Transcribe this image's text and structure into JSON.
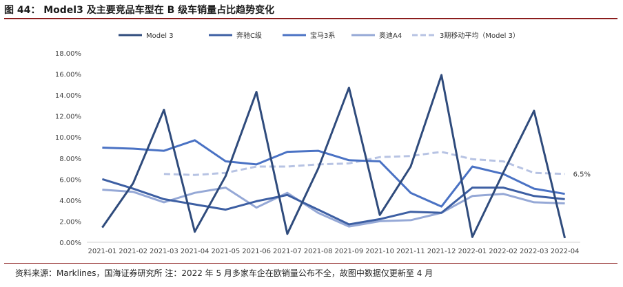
{
  "figure": {
    "title": "图 44：  Model3 及主要竞品车型在 B 级车销量占比趋势变化",
    "source": "资料来源：Marklines，国海证券研究所 注：2022 年 5 月多家车企在欧销量公布不全，故图中数据仅更新至 4 月"
  },
  "chart_data": {
    "type": "line",
    "xlabel": "",
    "ylabel": "",
    "ylim": [
      0,
      18
    ],
    "grid": false,
    "legend_position": "top",
    "y_ticks": [
      "0.00%",
      "2.00%",
      "4.00%",
      "6.00%",
      "8.00%",
      "10.00%",
      "12.00%",
      "14.00%",
      "16.00%",
      "18.00%"
    ],
    "categories": [
      "2021-01",
      "2021-02",
      "2021-03",
      "2021-04",
      "2021-05",
      "2021-06",
      "2021-07",
      "2021-08",
      "2021-09",
      "2021-10",
      "2021-11",
      "2021-12",
      "2022-01",
      "2022-02",
      "2022-03",
      "2022-04"
    ],
    "series": [
      {
        "name": "Model 3",
        "color": "#2f4b7c",
        "dashed": false,
        "values": [
          1.4,
          5.6,
          12.6,
          1.0,
          6.3,
          14.3,
          0.8,
          7.0,
          14.7,
          2.6,
          7.2,
          15.9,
          0.5,
          6.6,
          12.5,
          0.4
        ]
      },
      {
        "name": "奔驰C级",
        "color": "#3d5fa3",
        "dashed": false,
        "values": [
          6.0,
          5.1,
          4.1,
          3.6,
          3.1,
          3.9,
          4.5,
          3.1,
          1.7,
          2.2,
          2.9,
          2.8,
          5.2,
          5.2,
          4.4,
          4.1
        ]
      },
      {
        "name": "宝马3系",
        "color": "#4a72c4",
        "dashed": false,
        "values": [
          9.0,
          8.9,
          8.7,
          9.7,
          7.7,
          7.4,
          8.6,
          8.7,
          7.8,
          7.7,
          4.7,
          3.4,
          7.2,
          6.5,
          5.1,
          4.6
        ]
      },
      {
        "name": "奥迪A4",
        "color": "#95a8d6",
        "dashed": false,
        "values": [
          5.0,
          4.8,
          3.8,
          4.7,
          5.2,
          3.3,
          4.7,
          2.8,
          1.5,
          2.0,
          2.1,
          2.8,
          4.4,
          4.6,
          3.8,
          3.7
        ]
      },
      {
        "name": "3期移动平均（Model 3）",
        "color": "#b7c3e3",
        "dashed": true,
        "values": [
          null,
          null,
          6.5,
          6.4,
          6.6,
          7.2,
          7.2,
          7.4,
          7.5,
          8.1,
          8.2,
          8.6,
          7.9,
          7.7,
          6.6,
          6.5
        ]
      }
    ],
    "annotations": [
      {
        "series": "3期移动平均（Model 3）",
        "category": "2022-04",
        "text": "6.5%"
      }
    ]
  }
}
